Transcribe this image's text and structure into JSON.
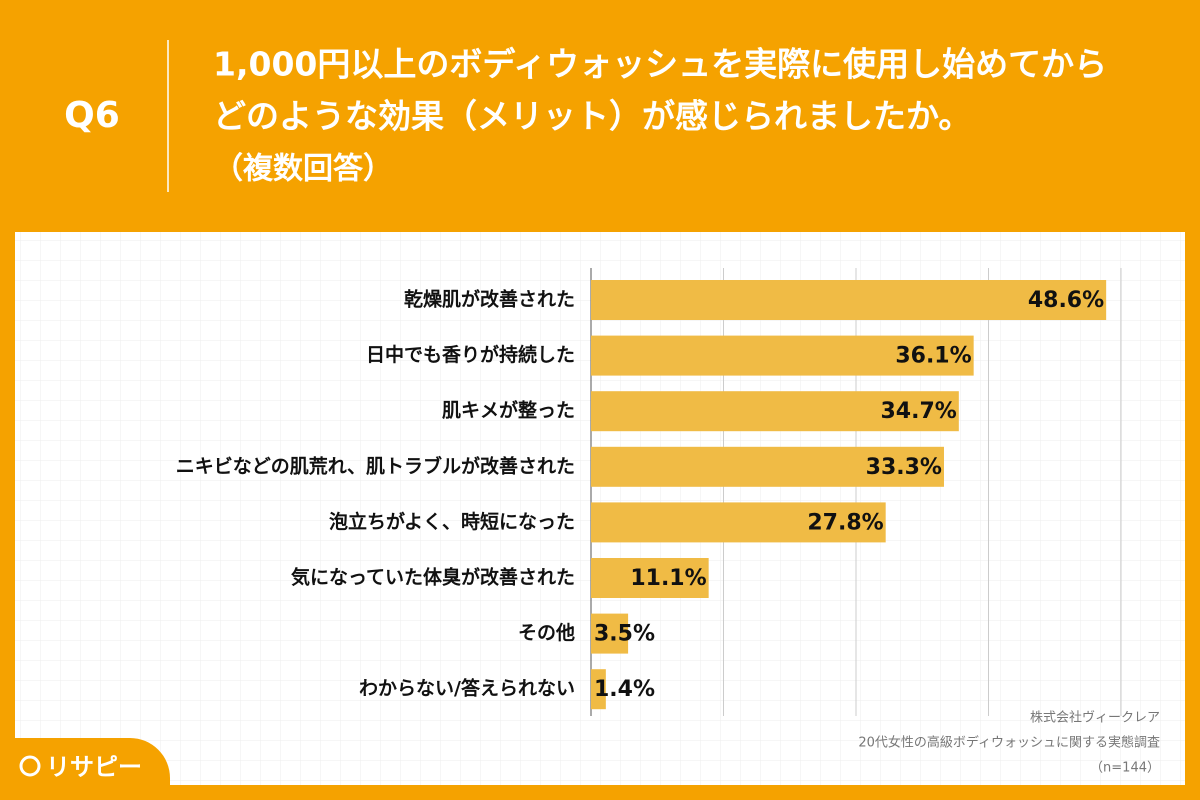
{
  "header": {
    "label": "Q6",
    "title_lines": [
      "1,000円以上のボディウォッシュを実際に使用し始めてから",
      "どのような効果（メリット）が感じられましたか。",
      "（複数回答）"
    ]
  },
  "chart_data": {
    "type": "bar",
    "orientation": "horizontal",
    "categories": [
      "乾燥肌が改善された",
      "日中でも香りが持続した",
      "肌キメが整った",
      "ニキビなどの肌荒れ、肌トラブルが改善された",
      "泡立ちがよく、時短になった",
      "気になっていた体臭が改善された",
      "その他",
      "わからない/答えられない"
    ],
    "values": [
      48.6,
      36.1,
      34.7,
      33.3,
      27.8,
      11.1,
      3.5,
      1.4
    ],
    "value_labels": [
      "48.6%",
      "36.1%",
      "34.7%",
      "33.3%",
      "27.8%",
      "11.1%",
      "3.5%",
      "1.4%"
    ],
    "color": "#F0BB45",
    "xlim": [
      0,
      50
    ],
    "xticks": [
      0,
      12.5,
      25,
      37.5,
      50
    ],
    "grid": true
  },
  "source": [
    "株式会社ヴィークレア",
    "20代女性の高級ボディウォッシュに関する実態調査",
    "（n=144）"
  ],
  "logo": "リサピー"
}
